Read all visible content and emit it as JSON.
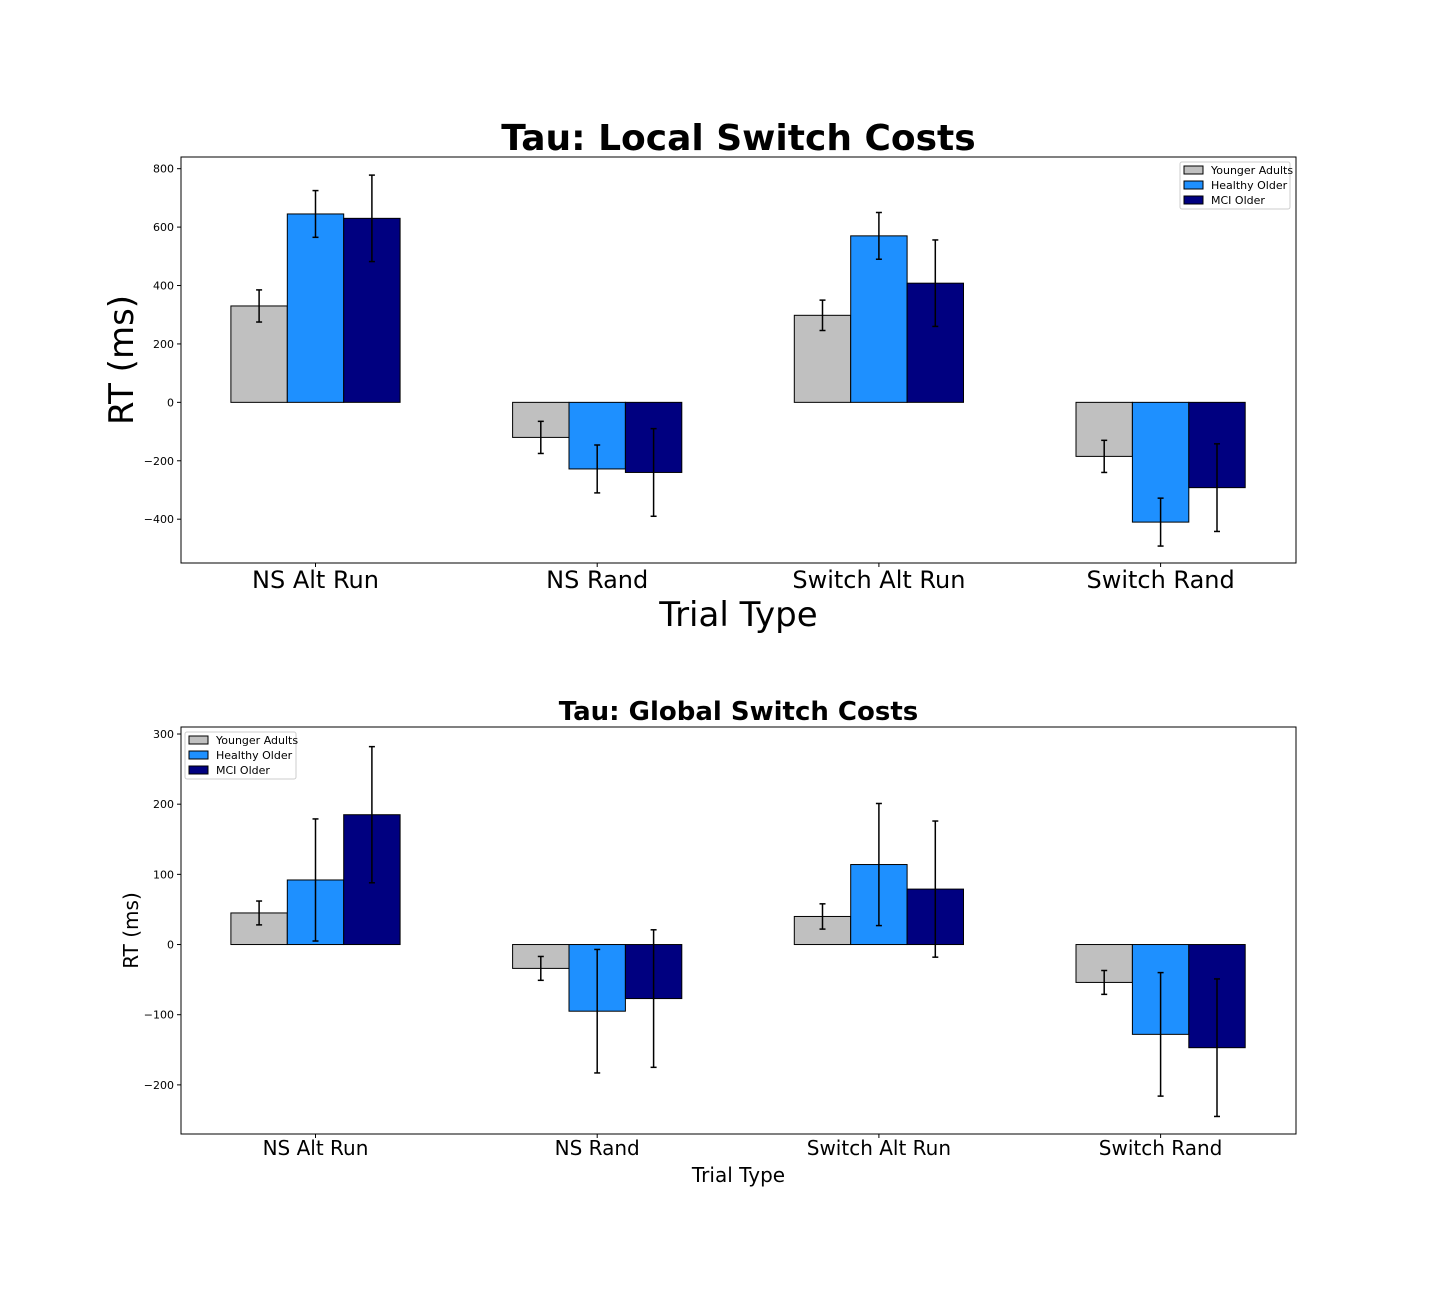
{
  "chart_data": [
    {
      "type": "bar",
      "title": "Tau: Local Switch Costs",
      "xlabel": "Trial Type",
      "ylabel": "RT (ms)",
      "categories": [
        "NS Alt Run",
        "NS Rand",
        "Switch Alt Run",
        "Switch Rand"
      ],
      "ylim": [
        -550,
        840
      ],
      "yticks": [
        -400,
        -200,
        0,
        200,
        400,
        600,
        800
      ],
      "ytick_labels": [
        "−400",
        "−200",
        "0",
        "200",
        "400",
        "600",
        "800"
      ],
      "legend_position": "upper right",
      "series": [
        {
          "name": "Younger Adults",
          "color": "#c0c0c0",
          "values": [
            330,
            -120,
            298,
            -185
          ],
          "errors": [
            55,
            55,
            52,
            55
          ]
        },
        {
          "name": "Healthy Older",
          "color": "#1e90ff",
          "values": [
            645,
            -228,
            570,
            -410
          ],
          "errors": [
            80,
            82,
            80,
            82
          ]
        },
        {
          "name": "MCI Older",
          "color": "#000080",
          "values": [
            630,
            -240,
            408,
            -292
          ],
          "errors": [
            148,
            150,
            148,
            150
          ]
        }
      ]
    },
    {
      "type": "bar",
      "title": "Tau: Global Switch Costs",
      "xlabel": "Trial Type",
      "ylabel": "RT (ms)",
      "categories": [
        "NS Alt Run",
        "NS Rand",
        "Switch Alt Run",
        "Switch Rand"
      ],
      "ylim": [
        -270,
        310
      ],
      "yticks": [
        -200,
        -100,
        0,
        100,
        200,
        300
      ],
      "ytick_labels": [
        "−200",
        "−100",
        "0",
        "100",
        "200",
        "300"
      ],
      "legend_position": "upper left",
      "series": [
        {
          "name": "Younger Adults",
          "color": "#c0c0c0",
          "values": [
            45,
            -34,
            40,
            -54
          ],
          "errors": [
            17,
            17,
            18,
            17
          ]
        },
        {
          "name": "Healthy Older",
          "color": "#1e90ff",
          "values": [
            92,
            -95,
            114,
            -128
          ],
          "errors": [
            87,
            88,
            87,
            88
          ]
        },
        {
          "name": "MCI Older",
          "color": "#000080",
          "values": [
            185,
            -77,
            79,
            -147
          ],
          "errors": [
            97,
            98,
            97,
            98
          ]
        }
      ]
    }
  ]
}
